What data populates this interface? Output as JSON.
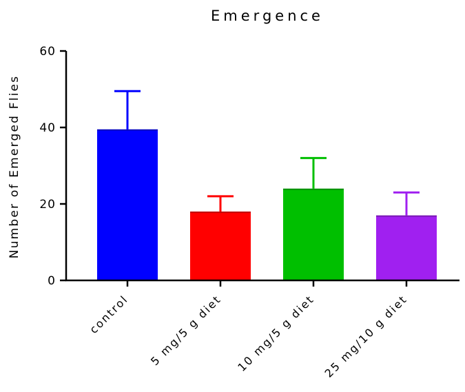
{
  "chart_data": {
    "type": "bar",
    "title": "Emergence",
    "xlabel": "",
    "ylabel": "Number of Emerged Flies",
    "ylim": [
      0,
      60
    ],
    "yticks": [
      "0",
      "20",
      "40",
      "60"
    ],
    "categories": [
      "control",
      "5 mg/5 g diet",
      "10 mg/5 g diet",
      "25 mg/10 g diet"
    ],
    "values": [
      39.5,
      18,
      24,
      17
    ],
    "error_upper": [
      10,
      4,
      8,
      6
    ],
    "colors": [
      "#0000ff",
      "#ff0000",
      "#00bf00",
      "#a020f0"
    ],
    "grid": false
  }
}
